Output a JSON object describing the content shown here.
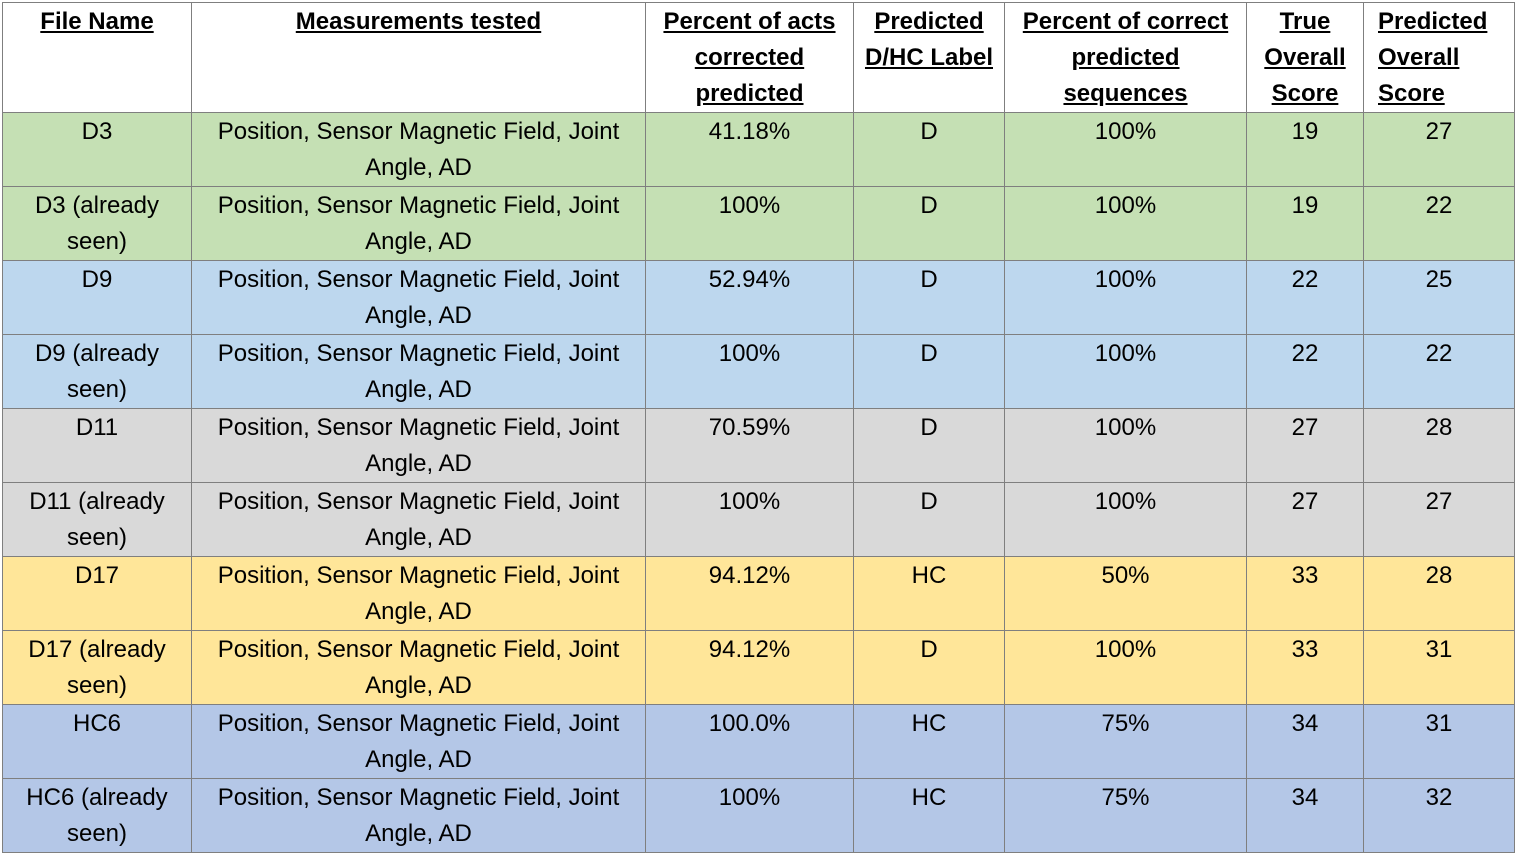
{
  "columns": [
    "File Name",
    "Measurements tested",
    "Percent of acts corrected predicted",
    "Predicted D/HC Label",
    "Percent of correct predicted sequences",
    "True Overall Score",
    "Predicted Overall Score"
  ],
  "rows": [
    {
      "file": "D3",
      "measurements": "Position, Sensor Magnetic Field, Joint Angle, AD",
      "pct_acts": "41.18%",
      "label": "D",
      "pct_seq": "100%",
      "true_score": "19",
      "pred_score": "27",
      "color": "#c5e0b4"
    },
    {
      "file": "D3 (already seen)",
      "measurements": "Position, Sensor Magnetic Field, Joint Angle, AD",
      "pct_acts": "100%",
      "label": "D",
      "pct_seq": "100%",
      "true_score": "19",
      "pred_score": "22",
      "color": "#c5e0b4"
    },
    {
      "file": "D9",
      "measurements": "Position, Sensor Magnetic Field, Joint Angle, AD",
      "pct_acts": "52.94%",
      "label": "D",
      "pct_seq": "100%",
      "true_score": "22",
      "pred_score": "25",
      "color": "#bdd7ee"
    },
    {
      "file": "D9 (already seen)",
      "measurements": "Position, Sensor Magnetic Field, Joint Angle, AD",
      "pct_acts": "100%",
      "label": "D",
      "pct_seq": "100%",
      "true_score": "22",
      "pred_score": "22",
      "color": "#bdd7ee"
    },
    {
      "file": "D11",
      "measurements": "Position, Sensor Magnetic Field, Joint Angle, AD",
      "pct_acts": "70.59%",
      "label": "D",
      "pct_seq": "100%",
      "true_score": "27",
      "pred_score": "28",
      "color": "#d9d9d9"
    },
    {
      "file": "D11 (already seen)",
      "measurements": "Position, Sensor Magnetic Field, Joint Angle, AD",
      "pct_acts": "100%",
      "label": "D",
      "pct_seq": "100%",
      "true_score": "27",
      "pred_score": "27",
      "color": "#d9d9d9"
    },
    {
      "file": "D17",
      "measurements": "Position, Sensor Magnetic Field, Joint Angle, AD",
      "pct_acts": "94.12%",
      "label": "HC",
      "pct_seq": "50%",
      "true_score": "33",
      "pred_score": "28",
      "color": "#ffe699"
    },
    {
      "file": "D17 (already seen)",
      "measurements": "Position, Sensor Magnetic Field, Joint Angle, AD",
      "pct_acts": "94.12%",
      "label": "D",
      "pct_seq": "100%",
      "true_score": "33",
      "pred_score": "31",
      "color": "#ffe699"
    },
    {
      "file": "HC6",
      "measurements": "Position, Sensor Magnetic Field, Joint Angle, AD",
      "pct_acts": "100.0%",
      "label": "HC",
      "pct_seq": "75%",
      "true_score": "34",
      "pred_score": "31",
      "color": "#b4c7e7"
    },
    {
      "file": "HC6 (already seen)",
      "measurements": "Position, Sensor Magnetic Field, Joint Angle, AD",
      "pct_acts": "100%",
      "label": "HC",
      "pct_seq": "75%",
      "true_score": "34",
      "pred_score": "32",
      "color": "#b4c7e7"
    }
  ]
}
